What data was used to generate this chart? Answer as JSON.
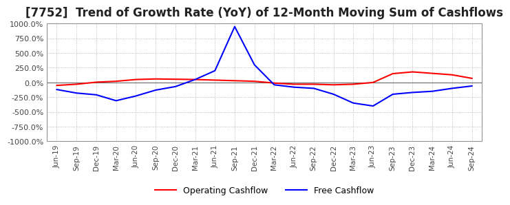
{
  "title": "[7752]  Trend of Growth Rate (YoY) of 12-Month Moving Sum of Cashflows",
  "title_fontsize": 12,
  "ylim": [
    -1000,
    1000
  ],
  "yticks": [
    -1000,
    -750,
    -500,
    -250,
    0,
    250,
    500,
    750,
    1000
  ],
  "ytick_labels": [
    "-1000.0%",
    "-750.0%",
    "-500.0%",
    "-250.0%",
    "0.0%",
    "250.0%",
    "500.0%",
    "750.0%",
    "1000.0%"
  ],
  "background_color": "#ffffff",
  "plot_background_color": "#ffffff",
  "grid_color": "#aaaaaa",
  "operating_color": "#ff0000",
  "free_color": "#0000ff",
  "legend_labels": [
    "Operating Cashflow",
    "Free Cashflow"
  ],
  "x_labels": [
    "Jun-19",
    "Sep-19",
    "Dec-19",
    "Mar-20",
    "Jun-20",
    "Sep-20",
    "Dec-20",
    "Mar-21",
    "Jun-21",
    "Sep-21",
    "Dec-21",
    "Mar-22",
    "Jun-22",
    "Sep-22",
    "Dec-22",
    "Mar-23",
    "Jun-23",
    "Sep-23",
    "Dec-23",
    "Mar-24",
    "Jun-24",
    "Sep-24"
  ],
  "operating_cashflow": [
    -50,
    -30,
    5,
    20,
    50,
    60,
    55,
    50,
    40,
    30,
    20,
    -10,
    -30,
    -30,
    -40,
    -30,
    0,
    150,
    180,
    155,
    130,
    70
  ],
  "free_cashflow": [
    -120,
    -180,
    -210,
    -310,
    -230,
    -130,
    -70,
    50,
    200,
    950,
    300,
    -40,
    -80,
    -100,
    -200,
    -350,
    -400,
    -200,
    -170,
    -150,
    -100,
    -60
  ]
}
